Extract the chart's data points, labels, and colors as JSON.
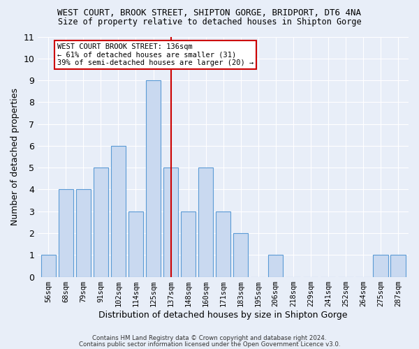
{
  "title": "WEST COURT, BROOK STREET, SHIPTON GORGE, BRIDPORT, DT6 4NA",
  "subtitle": "Size of property relative to detached houses in Shipton Gorge",
  "xlabel": "Distribution of detached houses by size in Shipton Gorge",
  "ylabel": "Number of detached properties",
  "categories": [
    "56sqm",
    "68sqm",
    "79sqm",
    "91sqm",
    "102sqm",
    "114sqm",
    "125sqm",
    "137sqm",
    "148sqm",
    "160sqm",
    "171sqm",
    "183sqm",
    "195sqm",
    "206sqm",
    "218sqm",
    "229sqm",
    "241sqm",
    "252sqm",
    "264sqm",
    "275sqm",
    "287sqm"
  ],
  "values": [
    1,
    4,
    4,
    5,
    6,
    3,
    9,
    5,
    3,
    5,
    3,
    2,
    0,
    1,
    0,
    0,
    0,
    0,
    0,
    1,
    1
  ],
  "bar_color": "#c9d9f0",
  "bar_edge_color": "#5b9bd5",
  "vline_x_index": 7,
  "vline_color": "#cc0000",
  "annotation_title": "WEST COURT BROOK STREET: 136sqm",
  "annotation_line1": "← 61% of detached houses are smaller (31)",
  "annotation_line2": "39% of semi-detached houses are larger (20) →",
  "annotation_box_color": "#cc0000",
  "ylim": [
    0,
    11
  ],
  "yticks": [
    0,
    1,
    2,
    3,
    4,
    5,
    6,
    7,
    8,
    9,
    10,
    11
  ],
  "footer1": "Contains HM Land Registry data © Crown copyright and database right 2024.",
  "footer2": "Contains public sector information licensed under the Open Government Licence v3.0.",
  "bg_color": "#e8eef8",
  "plot_bg_color": "#e8eef8"
}
